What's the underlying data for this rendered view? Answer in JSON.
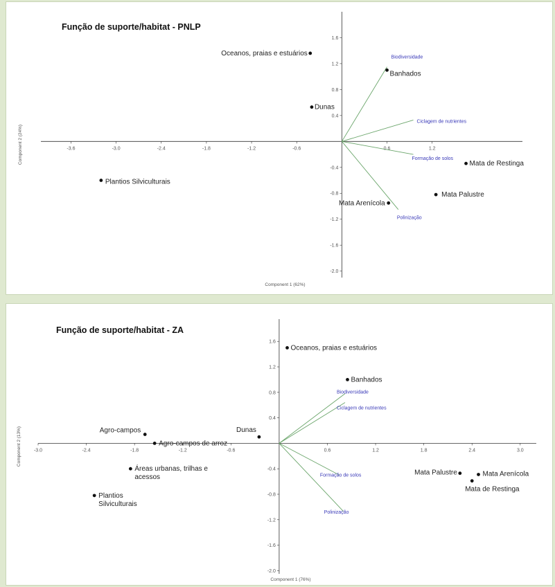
{
  "chart_data": [
    {
      "type": "scatter",
      "title": "Função de suporte/habitat - PNLP",
      "xlabel": "Component 1 (62%)",
      "ylabel": "Component 2 (24%)",
      "xticks": [
        "-3.6",
        "-3.0",
        "-2.4",
        "-1.8",
        "-1.2",
        "-0.6",
        "0.6",
        "1.2"
      ],
      "xtick_values": [
        -3.6,
        -3.0,
        -2.4,
        -1.8,
        -1.2,
        -0.6,
        0.6,
        1.2
      ],
      "yticks": [
        "1.6",
        "1.2",
        "0.8",
        "0.4",
        "-0.4",
        "-0.8",
        "-1.2",
        "-1.6",
        "-2.0"
      ],
      "ytick_values": [
        1.6,
        1.2,
        0.8,
        0.4,
        -0.4,
        -0.8,
        -1.2,
        -1.6,
        -2.0
      ],
      "xlim": [
        -4.0,
        2.4
      ],
      "ylim": [
        -2.1,
        2.0
      ],
      "points": [
        {
          "label": "Oceanos, praias e estuários",
          "x": -0.42,
          "y": 1.36,
          "anchor": "end"
        },
        {
          "label": "Banhados",
          "x": 0.6,
          "y": 1.1,
          "anchor": "start"
        },
        {
          "label": "Dunas",
          "x": -0.4,
          "y": 0.53,
          "anchor": "start"
        },
        {
          "label": "Mata de Restinga",
          "x": 1.65,
          "y": -0.34,
          "anchor": "start"
        },
        {
          "label": "Plantios Silviculturais",
          "x": -3.2,
          "y": -0.6,
          "anchor": "start"
        },
        {
          "label": "Mata Palustre",
          "x": 1.25,
          "y": -0.82,
          "anchor": "start"
        },
        {
          "label": "Mata Arenícola",
          "x": 0.62,
          "y": -0.95,
          "anchor": "end"
        }
      ],
      "loadings": [
        {
          "label": "Biodiversidade",
          "x": 0.6,
          "y": 1.15
        },
        {
          "label": "Ciclagem de nutrientes",
          "x": 0.95,
          "y": 0.33
        },
        {
          "label": "Formação de solos",
          "x": 0.95,
          "y": -0.2
        },
        {
          "label": "Polinização",
          "x": 0.75,
          "y": -1.05
        }
      ],
      "line_color": "#6aa56a"
    },
    {
      "type": "scatter",
      "title": "Função de suporte/habitat - ZA",
      "xlabel": "Component 1 (76%)",
      "ylabel": "Component 2 (13%)",
      "xticks": [
        "-3.0",
        "-2.4",
        "-1.8",
        "-1.2",
        "-0.6",
        "0.6",
        "1.2",
        "1.8",
        "2.4",
        "3.0"
      ],
      "xtick_values": [
        -3.0,
        -2.4,
        -1.8,
        -1.2,
        -0.6,
        0.6,
        1.2,
        1.8,
        2.4,
        3.0
      ],
      "yticks": [
        "1.6",
        "1.2",
        "0.8",
        "0.4",
        "-0.4",
        "-0.8",
        "-1.2",
        "-1.6",
        "-2.0"
      ],
      "ytick_values": [
        1.6,
        1.2,
        0.8,
        0.4,
        -0.4,
        -0.8,
        -1.2,
        -1.6,
        -2.0
      ],
      "xlim": [
        -3.0,
        3.2
      ],
      "ylim": [
        -2.05,
        1.95
      ],
      "points": [
        {
          "label": "Oceanos, praias e estuários",
          "x": 0.1,
          "y": 1.5,
          "anchor": "start"
        },
        {
          "label": "Banhados",
          "x": 0.85,
          "y": 1.0,
          "anchor": "start"
        },
        {
          "label": "Dunas",
          "x": -0.25,
          "y": 0.1,
          "anchor": "end"
        },
        {
          "label": "Agro-campos",
          "x": -1.67,
          "y": 0.14,
          "anchor": "end"
        },
        {
          "label": "Agro-campos de arroz",
          "x": -1.55,
          "y": 0.0,
          "anchor": "start"
        },
        {
          "label": "Áreas urbanas, trilhas e acessos",
          "x": -1.85,
          "y": -0.4,
          "anchor": "start"
        },
        {
          "label": "Plantios Silviculturais",
          "x": -2.3,
          "y": -0.82,
          "anchor": "start"
        },
        {
          "label": "Mata Palustre",
          "x": 2.25,
          "y": -0.47,
          "anchor": "end"
        },
        {
          "label": "Mata Arenícola",
          "x": 2.48,
          "y": -0.49,
          "anchor": "start"
        },
        {
          "label": "Mata de Restinga",
          "x": 2.4,
          "y": -0.59,
          "anchor": "start"
        }
      ],
      "loadings": [
        {
          "label": "Biodiversidade",
          "x": 0.82,
          "y": 0.78
        },
        {
          "label": "Ciclagem de nutrientes",
          "x": 0.82,
          "y": 0.64
        },
        {
          "label": "Formação de solos",
          "x": 0.75,
          "y": -0.5
        },
        {
          "label": "Polinização",
          "x": 0.8,
          "y": -1.07
        }
      ],
      "line_color": "#6aa56a"
    }
  ]
}
